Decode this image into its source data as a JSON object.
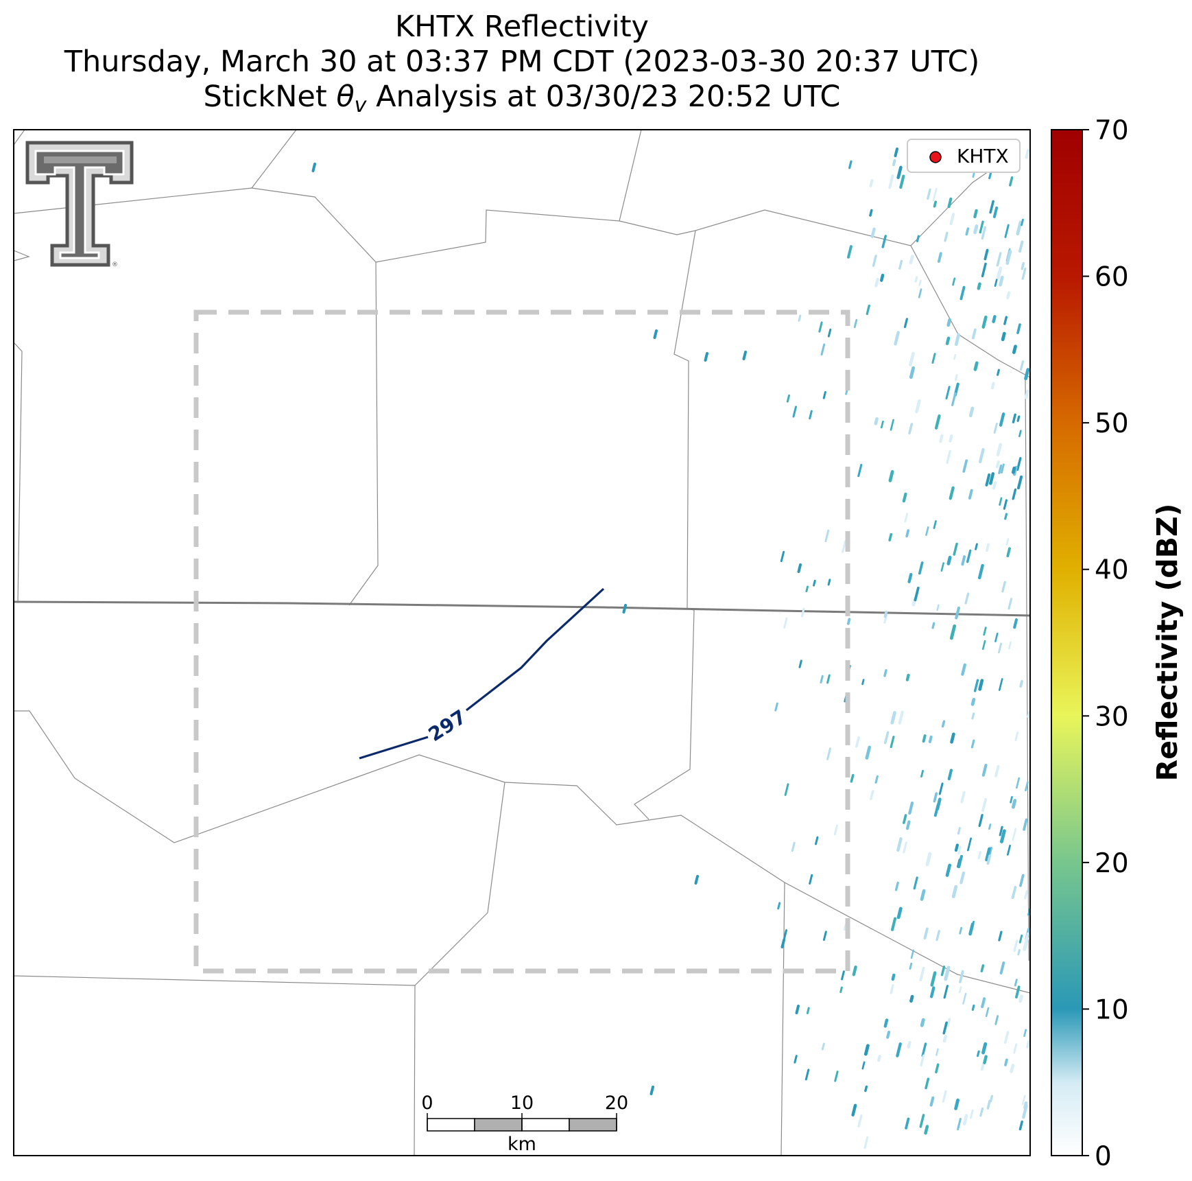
{
  "title": {
    "line1": "KHTX Reflectivity",
    "line2": "Thursday, March 30 at 03:37 PM CDT (2023-03-30 20:37 UTC)",
    "line3_prefix": "StickNet ",
    "line3_theta": "θ",
    "line3_sub": "v",
    "line3_suffix": " Analysis at 03/30/23 20:52 UTC"
  },
  "legend": {
    "label": "KHTX",
    "marker_color": "#e8141c"
  },
  "contour": {
    "value_label": "297",
    "color": "#0b2a6b"
  },
  "scale_bar": {
    "ticks": [
      "0",
      "10",
      "20"
    ],
    "unit": "km"
  },
  "colorbar": {
    "label": "Reflectivity (dBZ)",
    "min": 0,
    "max": 70,
    "ticks": [
      "0",
      "10",
      "20",
      "30",
      "40",
      "50",
      "60",
      "70"
    ],
    "colors": [
      "#ffffff",
      "#2a9bb8",
      "#78c68e",
      "#e9f55a",
      "#e0b000",
      "#d66a00",
      "#b41400",
      "#a00000"
    ]
  },
  "logo": {
    "name": "Texas Tech Double T",
    "mark": "®"
  }
}
